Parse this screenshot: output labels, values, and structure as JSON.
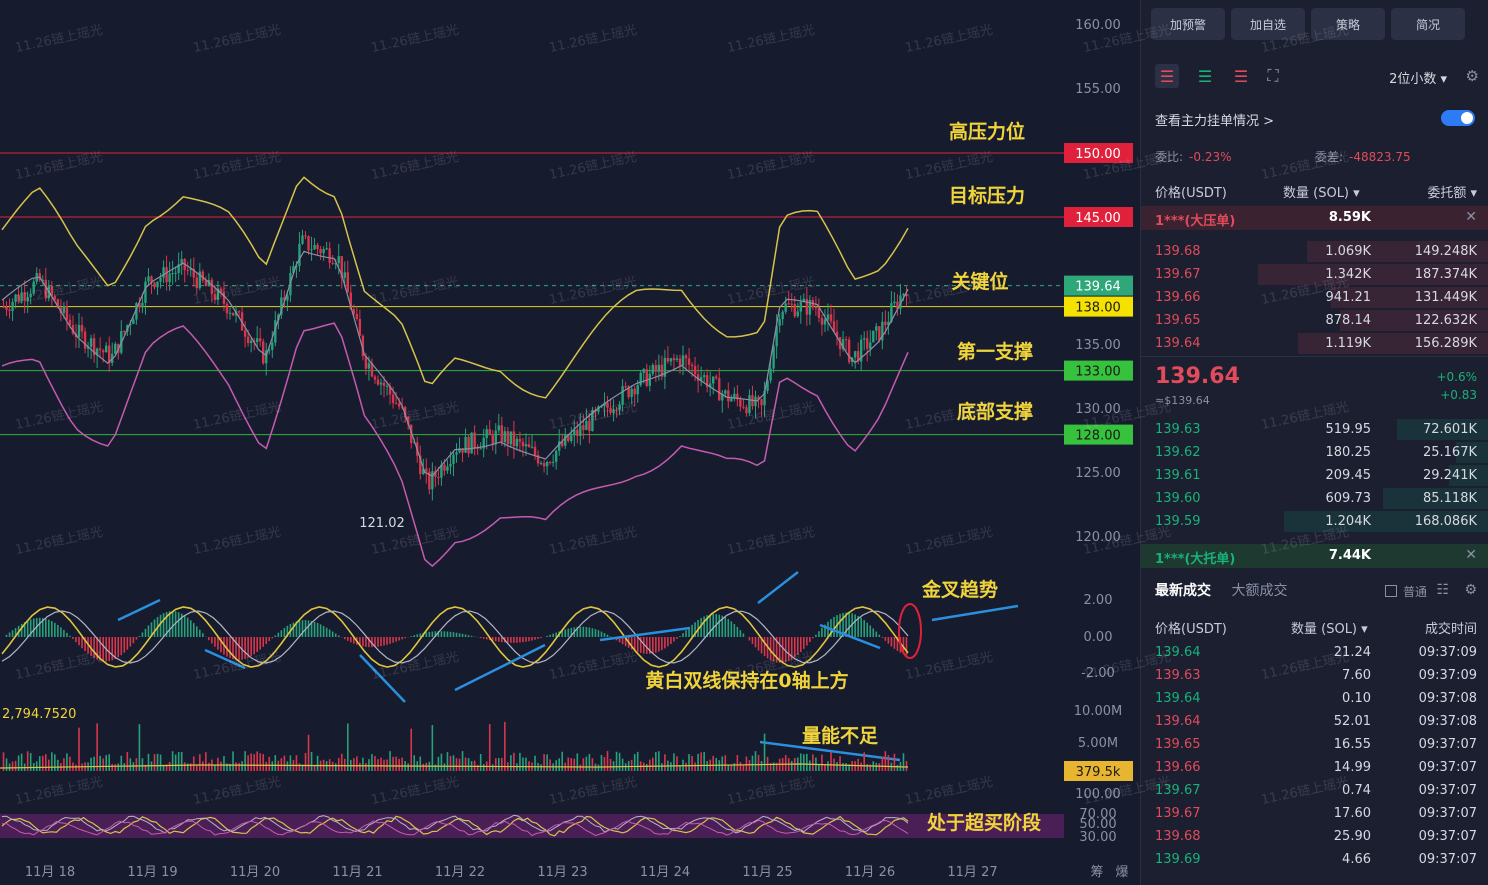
{
  "chart": {
    "price_axis": [
      "160.00",
      "155.00",
      "150.00",
      "145.00",
      "139.64",
      "138.00",
      "135.00",
      "133.00",
      "130.00",
      "128.00",
      "125.00",
      "120.00"
    ],
    "level_labels": {
      "high_pressure": {
        "value": "150.00",
        "note": "高压力位",
        "color": "#e0213b"
      },
      "target_pressure": {
        "value": "145.00",
        "note": "目标压力",
        "color": "#e0213b"
      },
      "current": {
        "value": "139.64",
        "color": "#2ea779"
      },
      "key": {
        "value": "138.00",
        "note": "关键位",
        "color": "#e7d423"
      },
      "support1": {
        "value": "133.00",
        "note": "第一支撑",
        "color": "#33b13b"
      },
      "support_bottom": {
        "value": "128.00",
        "note": "底部支撑",
        "color": "#33b13b"
      }
    },
    "low_marker": "121.02",
    "macd_axis": [
      "2.00",
      "0.00",
      "-2.00"
    ],
    "macd_note_golden": "金叉趋势",
    "macd_note_lines": "黄白双线保持在0轴上方",
    "volume_axis": [
      "10.00M",
      "5.00M"
    ],
    "volume_current": "379.5k",
    "volume_left": "2,794.7520",
    "volume_note": "量能不足",
    "rsi_axis": [
      "100.00",
      "70.00",
      "50.00",
      "30.00"
    ],
    "rsi_note": "处于超买阶段",
    "x_labels": [
      "11月 18",
      "11月 19",
      "11月 20",
      "11月 21",
      "11月 22",
      "11月 23",
      "11月 24",
      "11月 25",
      "11月 26",
      "11月 27"
    ],
    "bottom_right": [
      "筹",
      "爆"
    ],
    "watermark": "11.26链上瑶光"
  },
  "panel": {
    "top_tabs": [
      "加预警",
      "加自选",
      "策略",
      "简况"
    ],
    "decimals": "2位小数 ▾",
    "main_orders": "查看主力挂单情况 >",
    "ratio_label": "委比:",
    "ratio_value": "-0.23%",
    "diff_label": "委差:",
    "diff_value": "-48823.75",
    "headers": {
      "price": "价格(USDT)",
      "qty": "数量 (SOL) ▾",
      "amount": "委托额 ▾"
    },
    "big_sell": {
      "label": "1***(大压单)",
      "qty": "8.59K"
    },
    "asks": [
      {
        "p": "139.68",
        "q": "1.069K",
        "a": "149.248K",
        "w": 0.55
      },
      {
        "p": "139.67",
        "q": "1.342K",
        "a": "187.374K",
        "w": 0.7
      },
      {
        "p": "139.66",
        "q": "941.21",
        "a": "131.449K",
        "w": 0.48
      },
      {
        "p": "139.65",
        "q": "878.14",
        "a": "122.632K",
        "w": 0.45
      },
      {
        "p": "139.64",
        "q": "1.119K",
        "a": "156.289K",
        "w": 0.58
      }
    ],
    "last_price": "139.64",
    "last_sub": "≈$139.64",
    "change_pct": "+0.6%",
    "change_abs": "+0.83",
    "bids": [
      {
        "p": "139.63",
        "q": "519.95",
        "a": "72.601K",
        "w": 0.28
      },
      {
        "p": "139.62",
        "q": "180.25",
        "a": "25.167K",
        "w": 0.1
      },
      {
        "p": "139.61",
        "q": "209.45",
        "a": "29.241K",
        "w": 0.12
      },
      {
        "p": "139.60",
        "q": "609.73",
        "a": "85.118K",
        "w": 0.32
      },
      {
        "p": "139.59",
        "q": "1.204K",
        "a": "168.086K",
        "w": 0.62
      }
    ],
    "big_buy": {
      "label": "1***(大托单)",
      "qty": "7.44K"
    },
    "trades_tab_latest": "最新成交",
    "trades_tab_large": "大额成交",
    "normal_label": "普通",
    "trade_headers": {
      "price": "价格(USDT)",
      "qty": "数量 (SOL) ▾",
      "time": "成交时间"
    },
    "trades": [
      {
        "p": "139.64",
        "q": "21.24",
        "t": "09:37:09",
        "side": "buy"
      },
      {
        "p": "139.63",
        "q": "7.60",
        "t": "09:37:09",
        "side": "sell"
      },
      {
        "p": "139.64",
        "q": "0.10",
        "t": "09:37:08",
        "side": "buy"
      },
      {
        "p": "139.64",
        "q": "52.01",
        "t": "09:37:08",
        "side": "sell"
      },
      {
        "p": "139.65",
        "q": "16.55",
        "t": "09:37:07",
        "side": "sell"
      },
      {
        "p": "139.66",
        "q": "14.99",
        "t": "09:37:07",
        "side": "sell"
      },
      {
        "p": "139.67",
        "q": "0.74",
        "t": "09:37:07",
        "side": "buy"
      },
      {
        "p": "139.67",
        "q": "17.60",
        "t": "09:37:07",
        "side": "sell"
      },
      {
        "p": "139.68",
        "q": "25.90",
        "t": "09:37:07",
        "side": "sell"
      },
      {
        "p": "139.69",
        "q": "4.66",
        "t": "09:37:07",
        "side": "buy"
      }
    ]
  }
}
